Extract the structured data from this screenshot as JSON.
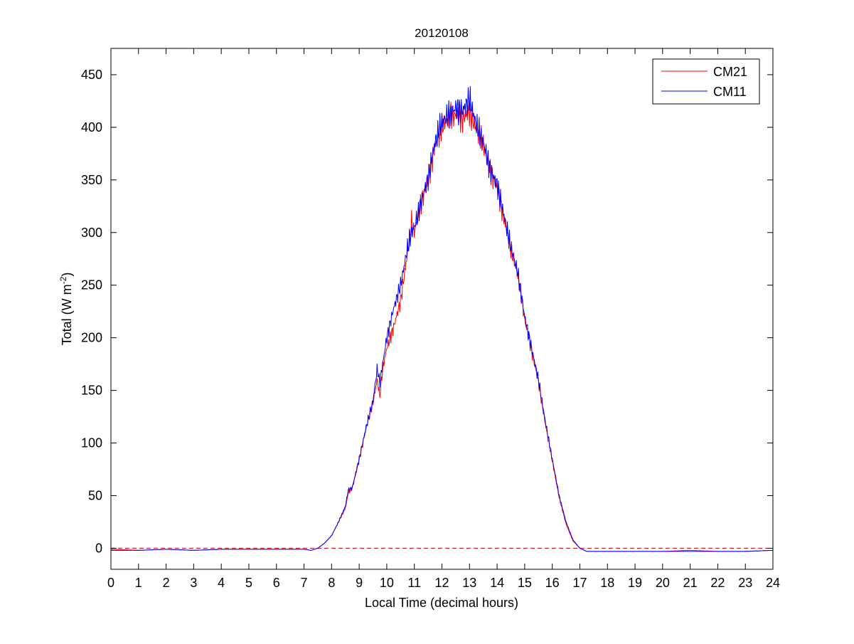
{
  "chart_data": {
    "type": "line",
    "title": "20120108",
    "xlabel": "Local Time (decimal hours)",
    "ylabel": "Total (W m",
    "ylabel_sup": "-2",
    "ylabel_end": ")",
    "xlim": [
      0,
      24
    ],
    "ylim": [
      -20,
      475
    ],
    "xticks": [
      0,
      1,
      2,
      3,
      4,
      5,
      6,
      7,
      8,
      9,
      10,
      11,
      12,
      13,
      14,
      15,
      16,
      17,
      18,
      19,
      20,
      21,
      22,
      23,
      24
    ],
    "yticks": [
      0,
      50,
      100,
      150,
      200,
      250,
      300,
      350,
      400,
      450
    ],
    "grid": false,
    "legend_position": "top-right",
    "reference_line": {
      "y": 0,
      "style": "dashed",
      "color": "#cc0000"
    },
    "series": [
      {
        "name": "CM21",
        "color": "#ff0000",
        "x": [
          0,
          1,
          2,
          3,
          4,
          5,
          6,
          7,
          7.25,
          7.5,
          7.75,
          8,
          8.25,
          8.5,
          8.6,
          8.75,
          9,
          9.25,
          9.5,
          9.65,
          9.75,
          9.85,
          10,
          10.25,
          10.5,
          10.75,
          10.9,
          11,
          11.25,
          11.5,
          11.75,
          12,
          12.25,
          12.5,
          12.75,
          13,
          13.25,
          13.5,
          13.75,
          14,
          14.25,
          14.5,
          14.75,
          15,
          15.25,
          15.5,
          15.75,
          16,
          16.25,
          16.5,
          16.75,
          17,
          17.25,
          18,
          19,
          20,
          21,
          22,
          23,
          24
        ],
        "y": [
          -1,
          -2,
          -1,
          -2,
          -1,
          -1,
          -1,
          -1,
          -2,
          0,
          5,
          12,
          25,
          38,
          52,
          57,
          84,
          114,
          138,
          160,
          145,
          170,
          190,
          210,
          235,
          280,
          310,
          300,
          328,
          350,
          382,
          400,
          408,
          412,
          408,
          415,
          398,
          383,
          358,
          343,
          313,
          284,
          260,
          218,
          188,
          158,
          118,
          83,
          48,
          23,
          7,
          0,
          -3,
          -3,
          -3,
          -3,
          -2,
          -3,
          -3,
          -2
        ]
      },
      {
        "name": "CM11",
        "color": "#0000ff",
        "x": [
          0,
          1,
          2,
          3,
          4,
          5,
          6,
          7,
          7.25,
          7.5,
          7.75,
          8,
          8.25,
          8.5,
          8.6,
          8.75,
          9,
          9.25,
          9.5,
          9.65,
          9.75,
          9.85,
          10,
          10.25,
          10.5,
          10.75,
          10.9,
          11,
          11.25,
          11.5,
          11.75,
          12,
          12.25,
          12.5,
          12.75,
          13,
          13.25,
          13.5,
          13.75,
          14,
          14.25,
          14.5,
          14.75,
          15,
          15.25,
          15.5,
          15.75,
          16,
          16.25,
          16.5,
          16.75,
          17,
          17.25,
          18,
          19,
          20,
          21,
          22,
          23,
          24
        ],
        "y": [
          -2,
          -2,
          -1,
          -2,
          -1,
          -1,
          -1,
          -1,
          -2,
          0,
          5,
          12,
          25,
          40,
          55,
          58,
          85,
          115,
          140,
          170,
          158,
          175,
          200,
          228,
          250,
          285,
          300,
          305,
          330,
          352,
          386,
          405,
          412,
          418,
          416,
          427,
          402,
          386,
          360,
          346,
          316,
          286,
          262,
          220,
          190,
          160,
          120,
          85,
          50,
          25,
          8,
          0,
          -3,
          -3,
          -3,
          -3,
          -3,
          -3,
          -3,
          -2
        ]
      }
    ]
  }
}
